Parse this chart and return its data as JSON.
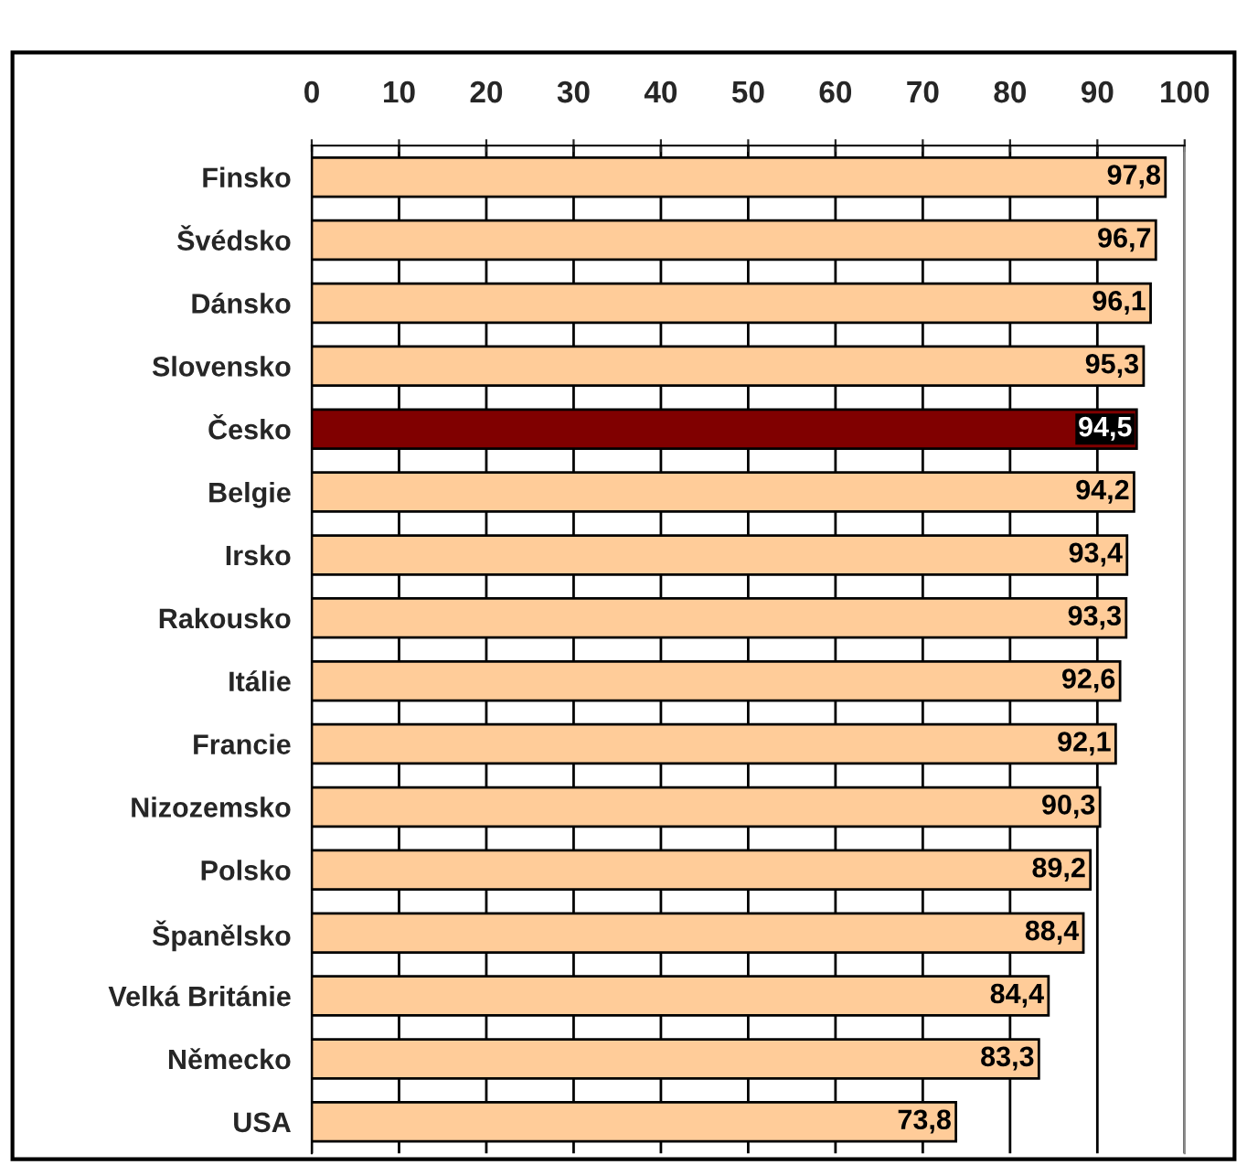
{
  "chart_data": {
    "type": "bar",
    "orientation": "horizontal",
    "categories": [
      "Finsko",
      "Švédsko",
      "Dánsko",
      "Slovensko",
      "Česko",
      "Belgie",
      "Irsko",
      "Rakousko",
      "Itálie",
      "Francie",
      "Nizozemsko",
      "Polsko",
      "Španělsko",
      "Velká Británie",
      "Německo",
      "USA"
    ],
    "values": [
      97.8,
      96.7,
      96.1,
      95.3,
      94.5,
      94.2,
      93.4,
      93.3,
      92.6,
      92.1,
      90.3,
      89.2,
      88.4,
      84.4,
      83.3,
      73.8
    ],
    "value_labels": [
      "97,8",
      "96,7",
      "96,1",
      "95,3",
      "94,5",
      "94,2",
      "93,4",
      "93,3",
      "92,6",
      "92,1",
      "90,3",
      "89,2",
      "88,4",
      "84,4",
      "83,3",
      "73,8"
    ],
    "colors": [
      "#ffcc99",
      "#ffcc99",
      "#ffcc99",
      "#ffcc99",
      "#800000",
      "#ffcc99",
      "#ffcc99",
      "#ffcc99",
      "#ffcc99",
      "#ffcc99",
      "#ffcc99",
      "#ffcc99",
      "#ffcc99",
      "#ffcc99",
      "#ffcc99",
      "#ffcc99"
    ],
    "xlim": [
      0,
      100
    ],
    "xticks": [
      0,
      10,
      20,
      30,
      40,
      50,
      60,
      70,
      80,
      90,
      100
    ],
    "grid": "x"
  }
}
